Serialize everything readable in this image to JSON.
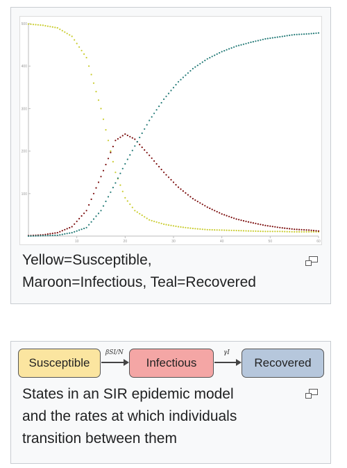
{
  "figure1": {
    "caption_lines": [
      "Yellow=Susceptible,",
      "Maroon=Infectious, Teal=Recovered"
    ]
  },
  "figure2": {
    "states": [
      "Susceptible",
      "Infectious",
      "Recovered"
    ],
    "rates": [
      "βSI/N",
      "γI"
    ],
    "caption_lines": [
      "States in an SIR epidemic model",
      "and the rates at which individuals",
      "transition between them"
    ]
  },
  "icons": {
    "enlarge": "magnify-clip-icon"
  },
  "chart_data": {
    "type": "scatter",
    "title": "",
    "xlabel": "",
    "ylabel": "",
    "xlim": [
      0,
      60
    ],
    "ylim": [
      0,
      500
    ],
    "x_ticks": [
      10,
      20,
      30,
      40,
      50,
      60
    ],
    "y_ticks": [
      100,
      200,
      300,
      400,
      500
    ],
    "grid": false,
    "legend": "none",
    "x": [
      0,
      3,
      6,
      9,
      12,
      15,
      18,
      20,
      22,
      25,
      28,
      31,
      34,
      37,
      40,
      43,
      46,
      49,
      52,
      55,
      58,
      60
    ],
    "series": [
      {
        "color": "#c9cc2e",
        "values": [
          499,
          496,
          490,
          470,
          420,
          300,
          150,
          90,
          60,
          38,
          28,
          22,
          18,
          15,
          14,
          13,
          12,
          11,
          11,
          10,
          10,
          10
        ]
      },
      {
        "color": "#7a0b0b",
        "values": [
          1,
          3,
          8,
          22,
          60,
          140,
          225,
          240,
          228,
          190,
          150,
          115,
          88,
          68,
          52,
          40,
          32,
          25,
          20,
          16,
          14,
          12
        ]
      },
      {
        "color": "#237a77",
        "values": [
          0,
          1,
          2,
          8,
          20,
          60,
          125,
          170,
          212,
          272,
          322,
          363,
          394,
          417,
          434,
          447,
          456,
          464,
          469,
          474,
          476,
          478
        ]
      }
    ]
  }
}
